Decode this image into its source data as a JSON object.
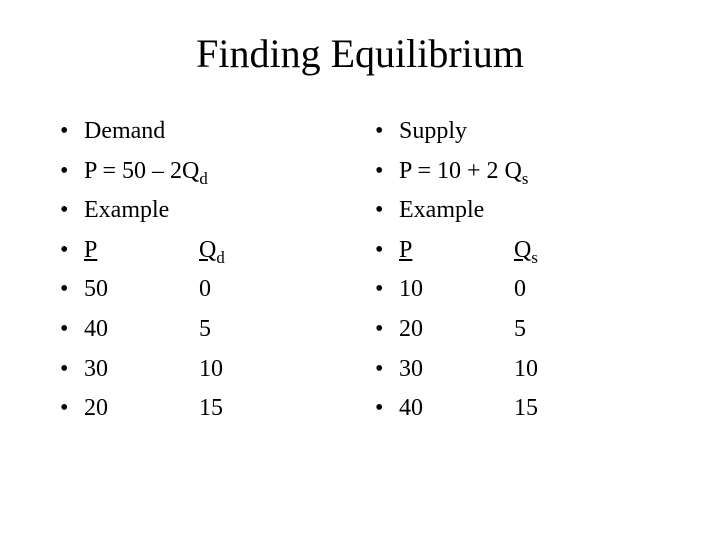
{
  "title": "Finding Equilibrium",
  "left": {
    "heading": "Demand",
    "equation_pre": "P = 50 – 2Q",
    "equation_sub": "d",
    "example_label": "Example",
    "header_p": "P",
    "header_q": "Q",
    "header_q_sub": "d",
    "rows": [
      {
        "p": "50",
        "q": "0"
      },
      {
        "p": "40",
        "q": "5"
      },
      {
        "p": "30",
        "q": "10"
      },
      {
        "p": "20",
        "q": "15"
      }
    ]
  },
  "right": {
    "heading": "Supply",
    "equation_pre": "P = 10 + 2 Q",
    "equation_sub": "s",
    "example_label": "Example",
    "header_p": "P",
    "header_q": "Q",
    "header_q_sub": "s",
    "rows": [
      {
        "p": "10",
        "q": "0"
      },
      {
        "p": "20",
        "q": "5"
      },
      {
        "p": "30",
        "q": "10"
      },
      {
        "p": "40",
        "q": "15"
      }
    ]
  },
  "style": {
    "background": "#ffffff",
    "text_color": "#000000",
    "title_fontsize": 40,
    "body_fontsize": 24,
    "font_family": "Times New Roman"
  }
}
